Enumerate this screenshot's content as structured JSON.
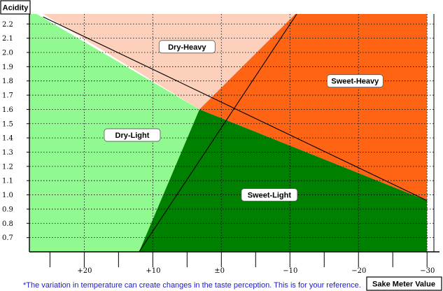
{
  "chart": {
    "y_axis_title": "Acidity",
    "x_axis_title": "Sake Meter Value",
    "footnote": "*The variation in temperature can create changes in the taste perception. This is for your reference.",
    "y_ticks": [
      {
        "value": 2.2,
        "label": "2.2"
      },
      {
        "value": 2.1,
        "label": "2.1"
      },
      {
        "value": 2.0,
        "label": "2.0"
      },
      {
        "value": 1.9,
        "label": "1.9"
      },
      {
        "value": 1.8,
        "label": "1.8"
      },
      {
        "value": 1.7,
        "label": "1.7"
      },
      {
        "value": 1.6,
        "label": "1.6"
      },
      {
        "value": 1.5,
        "label": "1.5"
      },
      {
        "value": 1.4,
        "label": "1.4"
      },
      {
        "value": 1.3,
        "label": "1.3"
      },
      {
        "value": 1.2,
        "label": "1.2"
      },
      {
        "value": 1.1,
        "label": "1.1"
      },
      {
        "value": 1.0,
        "label": "1.0"
      },
      {
        "value": 0.9,
        "label": "0.9"
      },
      {
        "value": 0.8,
        "label": "0.8"
      },
      {
        "value": 0.7,
        "label": "0.7"
      }
    ],
    "x_ticks": [
      {
        "value": 20,
        "label": "+20"
      },
      {
        "value": 10,
        "label": "+10"
      },
      {
        "value": 0,
        "label": "±0"
      },
      {
        "value": -10,
        "label": "−10"
      },
      {
        "value": -20,
        "label": "−20"
      },
      {
        "value": -30,
        "label": "−30"
      }
    ],
    "x_range": [
      28,
      -31
    ],
    "y_range": [
      0.6,
      2.27
    ],
    "regions": [
      {
        "name": "Dry-Light",
        "color": "#90fa90",
        "label_at": {
          "x": 13,
          "y": 1.42
        },
        "polygon": [
          [
            28,
            2.3
          ],
          [
            28,
            0.6
          ],
          [
            12,
            0.6
          ],
          [
            3.2,
            1.6
          ]
        ]
      },
      {
        "name": "Dry-Heavy",
        "color": "#fcd0bb",
        "label_at": {
          "x": 5,
          "y": 2.04
        },
        "polygon": [
          [
            26,
            2.27
          ],
          [
            -10.8,
            2.27
          ],
          [
            -16.5,
            1.95
          ],
          [
            3.2,
            1.6
          ]
        ]
      },
      {
        "name": "Sweet-Heavy",
        "color": "#ff6414",
        "label_at": {
          "x": -19.5,
          "y": 1.8
        },
        "polygon": [
          [
            3.2,
            1.6
          ],
          [
            -10.8,
            2.27
          ],
          [
            -30,
            2.27
          ],
          [
            -30,
            0.96
          ]
        ]
      },
      {
        "name": "Sweet-Light",
        "color": "#008000",
        "label_at": {
          "x": -7,
          "y": 1.0
        },
        "polygon": [
          [
            3.2,
            1.6
          ],
          [
            -30,
            0.96
          ],
          [
            -30,
            0.6
          ],
          [
            12,
            0.6
          ]
        ]
      }
    ],
    "lines": [
      {
        "from": [
          26,
          2.25
        ],
        "to": [
          -30,
          0.96
        ]
      },
      {
        "from": [
          12,
          0.6
        ],
        "to": [
          -11,
          2.27
        ]
      }
    ]
  }
}
